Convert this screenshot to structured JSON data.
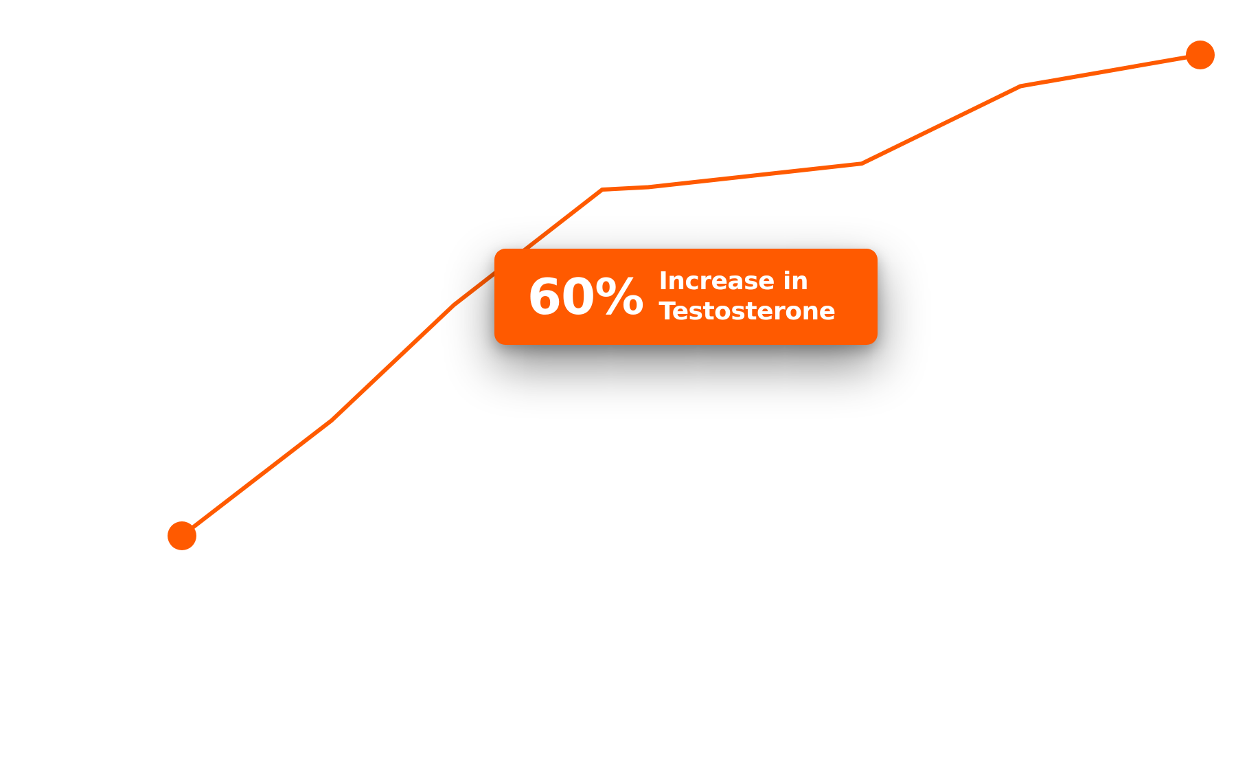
{
  "chart_data": {
    "type": "line",
    "title": "",
    "xlabel": "",
    "ylabel": "",
    "x": [
      0,
      1,
      2,
      3,
      4,
      5,
      6,
      7
    ],
    "series": [
      {
        "values": [
          0,
          24,
          48,
          72,
          72.5,
          77.4,
          93.5,
          100
        ],
        "color": "#ff5a00",
        "endpoint_markers": true
      }
    ],
    "xlim": [
      0,
      7
    ],
    "ylim": [
      0,
      100
    ],
    "grid": false,
    "axes_visible": false
  },
  "callout": {
    "value": "60%",
    "label_line1": "Increase in",
    "label_line2": "Testosterone",
    "background": "#ff5a00",
    "text_color": "#ffffff"
  }
}
